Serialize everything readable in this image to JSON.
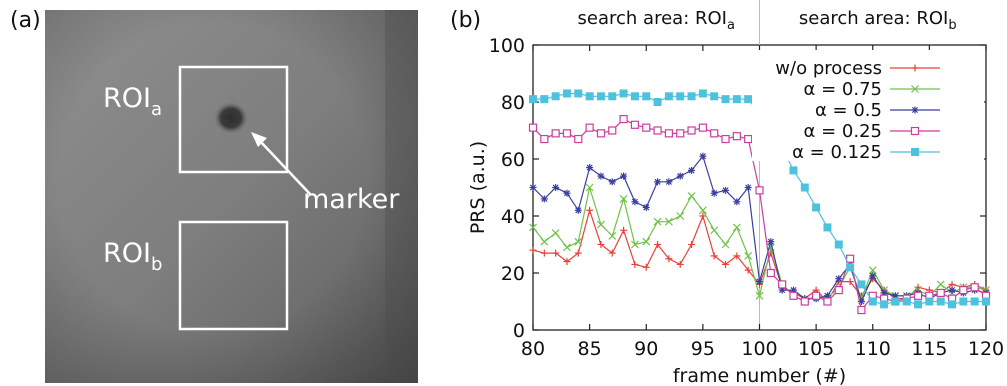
{
  "panels": {
    "a": "(a)",
    "b": "(b)"
  },
  "image": {
    "roi_a_base": "ROI",
    "roi_a_sub": "a",
    "roi_b_base": "ROI",
    "roi_b_sub": "b",
    "marker_label": "marker"
  },
  "chart_data": {
    "type": "line",
    "xlabel": "frame number (#)",
    "ylabel": "PRS (a.u.)",
    "xlim": [
      80,
      120
    ],
    "ylim": [
      0,
      100
    ],
    "xticks": [
      80,
      85,
      90,
      95,
      100,
      105,
      110,
      115,
      120
    ],
    "yticks": [
      0,
      20,
      40,
      60,
      80,
      100
    ],
    "grid": false,
    "legend_position": "top-right",
    "divider_x": 100,
    "region_labels": [
      {
        "text_base": "search area: ROI",
        "text_sub": "a"
      },
      {
        "text_base": "search area: ROI",
        "text_sub": "b"
      }
    ],
    "x": [
      80,
      81,
      82,
      83,
      84,
      85,
      86,
      87,
      88,
      89,
      90,
      91,
      92,
      93,
      94,
      95,
      96,
      97,
      98,
      99,
      100,
      101,
      102,
      103,
      104,
      105,
      106,
      107,
      108,
      109,
      110,
      111,
      112,
      113,
      114,
      115,
      116,
      117,
      118,
      119,
      120
    ],
    "series": [
      {
        "name": "w/o process",
        "color": "#e8413a",
        "marker": "plus",
        "values": [
          28,
          27,
          27,
          24,
          27,
          42,
          30,
          27,
          35,
          23,
          22,
          30,
          25,
          23,
          30,
          40,
          26,
          23,
          26,
          21,
          16,
          27,
          15,
          13,
          11,
          14,
          10,
          17,
          17,
          12,
          18,
          14,
          11,
          11,
          15,
          14,
          13,
          16,
          15,
          16,
          14
        ]
      },
      {
        "name": "α = 0.75",
        "color": "#6fc24a",
        "marker": "x",
        "values": [
          36,
          31,
          34,
          29,
          31,
          50,
          37,
          33,
          46,
          30,
          31,
          38,
          38,
          40,
          47,
          42,
          35,
          30,
          36,
          26,
          12,
          29,
          16,
          12,
          10,
          12,
          11,
          15,
          22,
          11,
          21,
          14,
          12,
          12,
          14,
          12,
          16,
          13,
          15,
          15,
          14
        ]
      },
      {
        "name": "α = 0.5",
        "color": "#3b3fa0",
        "marker": "asterisk",
        "values": [
          50,
          46,
          50,
          48,
          42,
          57,
          54,
          52,
          54,
          45,
          43,
          52,
          52,
          54,
          56,
          61,
          48,
          49,
          45,
          50,
          17,
          31,
          14,
          14,
          11,
          11,
          12,
          18,
          23,
          10,
          19,
          13,
          12,
          12,
          13,
          11,
          13,
          14,
          13,
          14,
          13
        ]
      },
      {
        "name": "α = 0.25",
        "color": "#cc3d9e",
        "marker": "square-open",
        "values": [
          71,
          67,
          69,
          69,
          67,
          71,
          69,
          70,
          74,
          72,
          71,
          70,
          69,
          69,
          70,
          71,
          69,
          67,
          68,
          67,
          49,
          20,
          16,
          12,
          10,
          12,
          10,
          14,
          25,
          7,
          12,
          11,
          10,
          11,
          12,
          12,
          13,
          11,
          14,
          15,
          12
        ]
      },
      {
        "name": "α = 0.125",
        "color": "#4ec1dd",
        "marker": "square-filled",
        "values": [
          81,
          81,
          82,
          83,
          83,
          82,
          82,
          82,
          83,
          82,
          82,
          80,
          82,
          82,
          82,
          83,
          82,
          81,
          81,
          81,
          76,
          70,
          64,
          56,
          50,
          43,
          36,
          30,
          22,
          16,
          10,
          9,
          10,
          10,
          9,
          10,
          10,
          9,
          10,
          10,
          10
        ]
      }
    ]
  }
}
